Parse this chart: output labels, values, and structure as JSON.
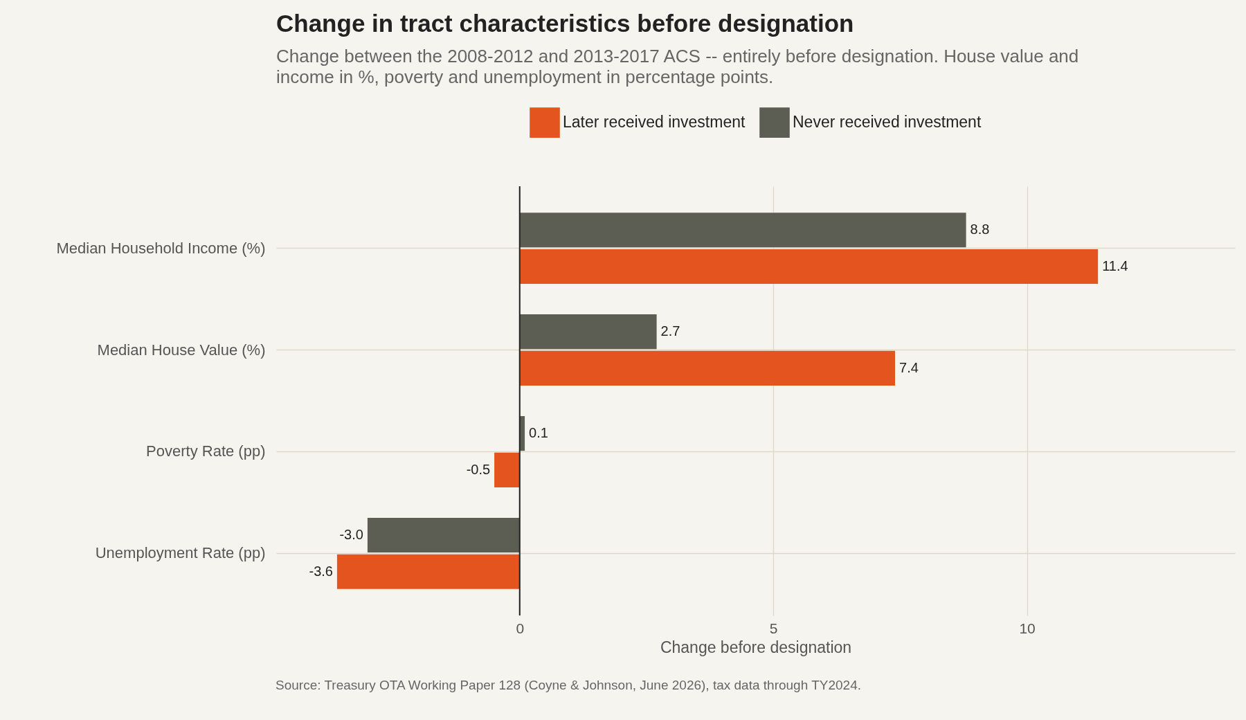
{
  "chart_data": {
    "type": "bar",
    "orientation": "horizontal",
    "title": "Change in tract characteristics before designation",
    "subtitle": "Change between the 2008-2012 and 2013-2017 ACS -- entirely before designation. House value and income in %, poverty and unemployment in percentage points.",
    "xlabel": "Change before designation",
    "categories": [
      "Median Household Income (%)",
      "Median House Value (%)",
      "Poverty Rate (pp)",
      "Unemployment Rate (pp)"
    ],
    "series": [
      {
        "name": "Later received investment",
        "color": "#e4541e",
        "values": [
          11.4,
          7.4,
          -0.5,
          -3.6
        ],
        "value_labels": [
          "11.4",
          "7.4",
          "-0.5",
          "-3.6"
        ]
      },
      {
        "name": "Never received investment",
        "color": "#5c5e54",
        "values": [
          8.8,
          2.7,
          0.1,
          -3.0
        ],
        "value_labels": [
          "8.8",
          "2.7",
          "0.1",
          "-3.0"
        ]
      }
    ],
    "xlim": [
      -4.8,
      14.1
    ],
    "xticks": [
      0,
      5,
      10
    ],
    "grid": true,
    "legend": "top",
    "ref_lines": [
      {
        "axis": "x",
        "value": 0,
        "color": "#222222"
      }
    ],
    "annotations": [
      "Source: Treasury OTA Working Paper 128 (Coyne & Johnson, June 2026), tax data through TY2024."
    ]
  }
}
